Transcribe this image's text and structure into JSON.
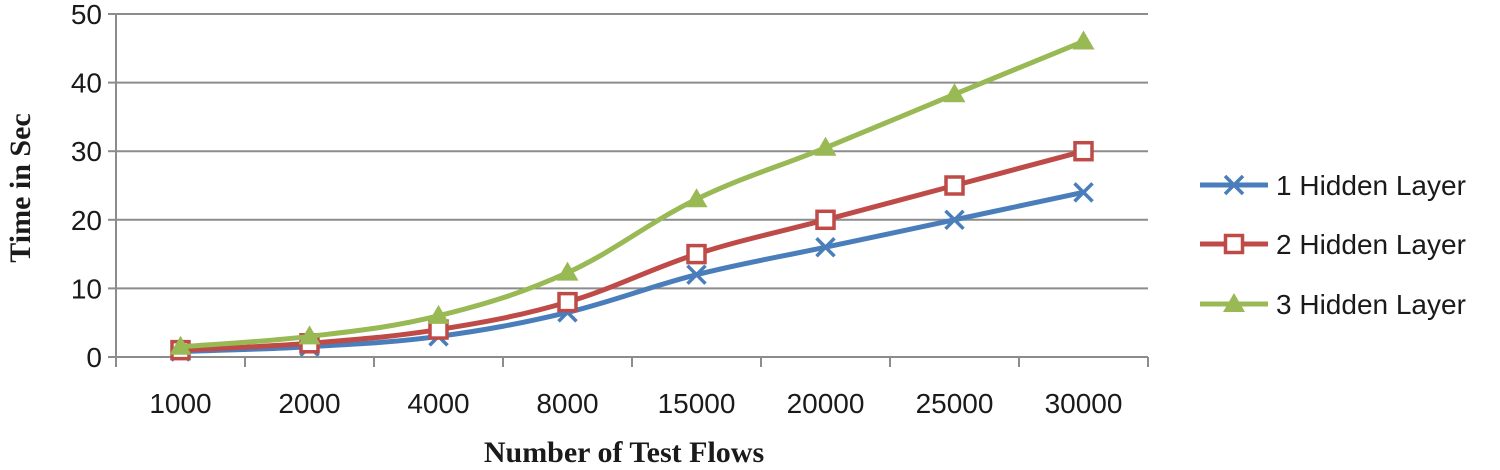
{
  "chart_data": {
    "type": "line",
    "categories": [
      "1000",
      "2000",
      "4000",
      "8000",
      "15000",
      "20000",
      "25000",
      "30000"
    ],
    "series": [
      {
        "name": "1 Hidden Layer",
        "values": [
          0.8,
          1.5,
          3,
          6.5,
          12,
          16,
          20,
          24
        ],
        "color": "#4a7ebb",
        "marker": "x"
      },
      {
        "name": "2 Hidden Layer",
        "values": [
          1,
          2,
          4,
          8,
          15,
          20,
          25,
          30
        ],
        "color": "#be4b48",
        "marker": "square"
      },
      {
        "name": "3 Hidden Layer",
        "values": [
          1.5,
          3,
          6,
          12.3,
          23,
          30.5,
          38.3,
          46
        ],
        "color": "#98b954",
        "marker": "triangle"
      }
    ],
    "title": "",
    "xlabel": "Number of Test Flows",
    "ylabel": "Time in Sec",
    "ylim": [
      0,
      50
    ],
    "yticks": [
      0,
      10,
      20,
      30,
      40,
      50
    ],
    "grid": true,
    "legend_position": "right"
  }
}
